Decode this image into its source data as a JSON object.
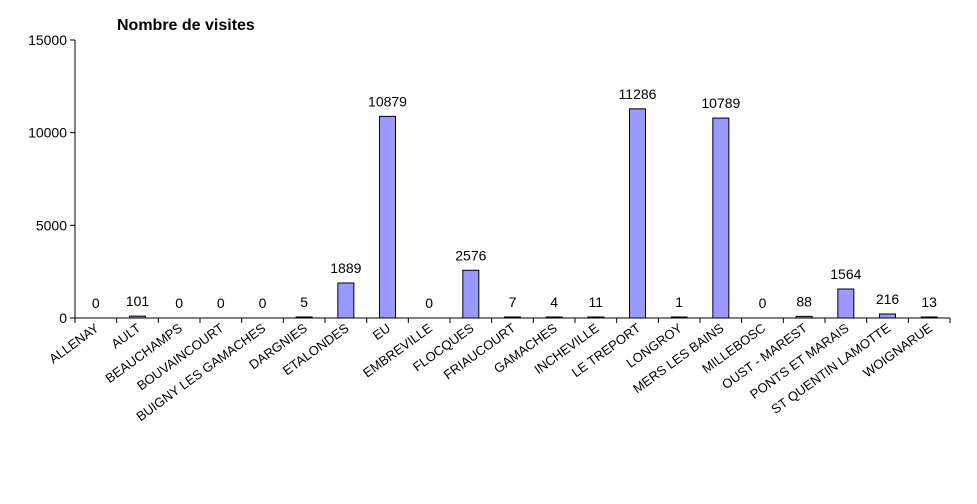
{
  "chart_data": {
    "type": "bar",
    "title": "Nombre de visites",
    "xlabel": "",
    "ylabel": "",
    "ylim": [
      0,
      15000
    ],
    "yticks": [
      0,
      5000,
      10000,
      15000
    ],
    "grid": false,
    "legend": "none",
    "bar_color": "#9999ff",
    "categories": [
      "ALLENAY",
      "AULT",
      "BEAUCHAMPS",
      "BOUVAINCOURT",
      "BUIGNY LES GAMACHES",
      "DARGNIES",
      "ETALONDES",
      "EU",
      "EMBREVILLE",
      "FLOCQUES",
      "FRIAUCOURT",
      "GAMACHES",
      "INCHEVILLE",
      "LE TREPORT",
      "LONGROY",
      "MERS LES BAINS",
      "MILLEBOSC",
      "OUST - MAREST",
      "PONTS ET MARAIS",
      "ST QUENTIN LAMOTTE",
      "WOIGNARUE"
    ],
    "values": [
      0,
      101,
      0,
      0,
      0,
      5,
      1889,
      10879,
      0,
      2576,
      7,
      4,
      11,
      11286,
      1,
      10789,
      0,
      88,
      1564,
      216,
      13
    ]
  }
}
